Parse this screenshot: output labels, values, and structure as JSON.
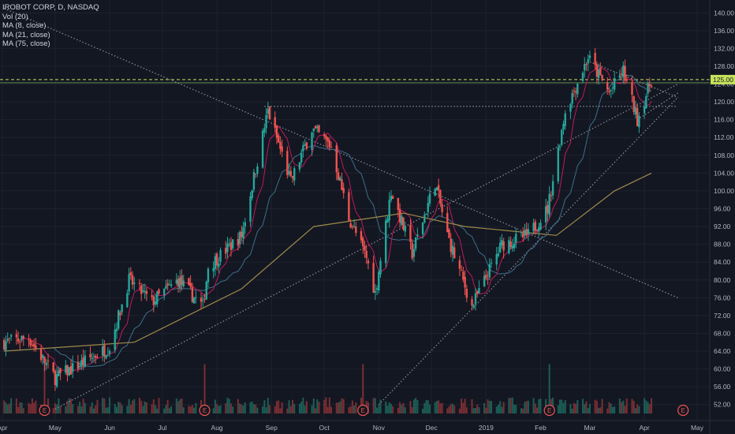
{
  "legend": {
    "title": "IROBOT CORP, D, NASDAQ",
    "vol": "Vol (20)",
    "ma8": "MA (8, close)",
    "ma21": "MA (21, close)",
    "ma75": "MA (75, close)"
  },
  "colors": {
    "background": "#131722",
    "up": "#26a69a",
    "down": "#ef5350",
    "ma8": "#c2185b",
    "ma21": "#3d6f8a",
    "ma75": "#9e8a4a",
    "hline": "#c6e25b",
    "trend": "#8a8e99"
  },
  "current_price_label": "125.00",
  "earnings_marker": "E",
  "chart_data": {
    "type": "candlestick",
    "title": "IROBOT CORP, D, NASDAQ",
    "x_ticks": [
      "Apr",
      "May",
      "Jun",
      "Jul",
      "Aug",
      "Sep",
      "Oct",
      "Nov",
      "Dec",
      "2019",
      "Feb",
      "Mar",
      "Apr",
      "May"
    ],
    "y_ticks": [
      52,
      56,
      60,
      64,
      68,
      72,
      76,
      80,
      84,
      88,
      92,
      96,
      100,
      104,
      108,
      112,
      116,
      120,
      124,
      128,
      132,
      136,
      140
    ],
    "ylim": [
      50,
      142
    ],
    "last_price": 125.0,
    "horizontal_line": 125.0,
    "earnings_dates": [
      "2018-04-25",
      "2018-07-25",
      "2018-10-23",
      "2019-02-06",
      "2019-04-23"
    ],
    "key_prices": [
      {
        "date": "2018-04-02",
        "close": 66
      },
      {
        "date": "2018-04-16",
        "close": 67
      },
      {
        "date": "2018-05-01",
        "close": 58
      },
      {
        "date": "2018-05-15",
        "close": 61
      },
      {
        "date": "2018-06-01",
        "close": 65
      },
      {
        "date": "2018-06-12",
        "close": 80
      },
      {
        "date": "2018-06-25",
        "close": 75
      },
      {
        "date": "2018-07-10",
        "close": 80
      },
      {
        "date": "2018-07-24",
        "close": 74
      },
      {
        "date": "2018-07-27",
        "close": 83
      },
      {
        "date": "2018-08-15",
        "close": 90
      },
      {
        "date": "2018-08-30",
        "close": 118
      },
      {
        "date": "2018-09-12",
        "close": 102
      },
      {
        "date": "2018-09-24",
        "close": 114
      },
      {
        "date": "2018-10-05",
        "close": 110
      },
      {
        "date": "2018-10-15",
        "close": 94
      },
      {
        "date": "2018-10-25",
        "close": 85
      },
      {
        "date": "2018-10-30",
        "close": 77
      },
      {
        "date": "2018-11-08",
        "close": 100
      },
      {
        "date": "2018-11-20",
        "close": 86
      },
      {
        "date": "2018-12-03",
        "close": 102
      },
      {
        "date": "2018-12-10",
        "close": 90
      },
      {
        "date": "2018-12-24",
        "close": 74
      },
      {
        "date": "2019-01-10",
        "close": 88
      },
      {
        "date": "2019-01-25",
        "close": 90
      },
      {
        "date": "2019-02-05",
        "close": 96
      },
      {
        "date": "2019-02-15",
        "close": 118
      },
      {
        "date": "2019-02-28",
        "close": 130
      },
      {
        "date": "2019-03-12",
        "close": 122
      },
      {
        "date": "2019-03-20",
        "close": 127
      },
      {
        "date": "2019-03-28",
        "close": 116
      },
      {
        "date": "2019-04-05",
        "close": 125
      }
    ],
    "ma75_points": [
      {
        "date": "2018-04-02",
        "value": 64
      },
      {
        "date": "2018-06-15",
        "value": 66
      },
      {
        "date": "2018-08-15",
        "value": 78
      },
      {
        "date": "2018-09-25",
        "value": 92
      },
      {
        "date": "2018-11-15",
        "value": 95
      },
      {
        "date": "2018-12-20",
        "value": 92
      },
      {
        "date": "2019-02-10",
        "value": 90
      },
      {
        "date": "2019-03-15",
        "value": 100
      },
      {
        "date": "2019-04-05",
        "value": 104
      }
    ],
    "trendlines": [
      {
        "from": {
          "date": "2018-04-02",
          "price": 141
        },
        "to": {
          "date": "2019-04-20",
          "price": 76
        }
      },
      {
        "from": {
          "date": "2018-08-28",
          "price": 119
        },
        "to": {
          "date": "2019-04-20",
          "price": 119
        }
      },
      {
        "from": {
          "date": "2018-05-01",
          "price": 51
        },
        "to": {
          "date": "2019-04-20",
          "price": 124
        }
      },
      {
        "from": {
          "date": "2018-11-01",
          "price": 52
        },
        "to": {
          "date": "2019-04-20",
          "price": 121
        }
      },
      {
        "from": {
          "date": "2019-03-28",
          "price": 116
        },
        "to": {
          "date": "2019-04-20",
          "price": 122
        }
      },
      {
        "from": {
          "date": "2019-03-01",
          "price": 129
        },
        "to": {
          "date": "2019-04-20",
          "price": 121
        }
      }
    ],
    "grid": true
  }
}
